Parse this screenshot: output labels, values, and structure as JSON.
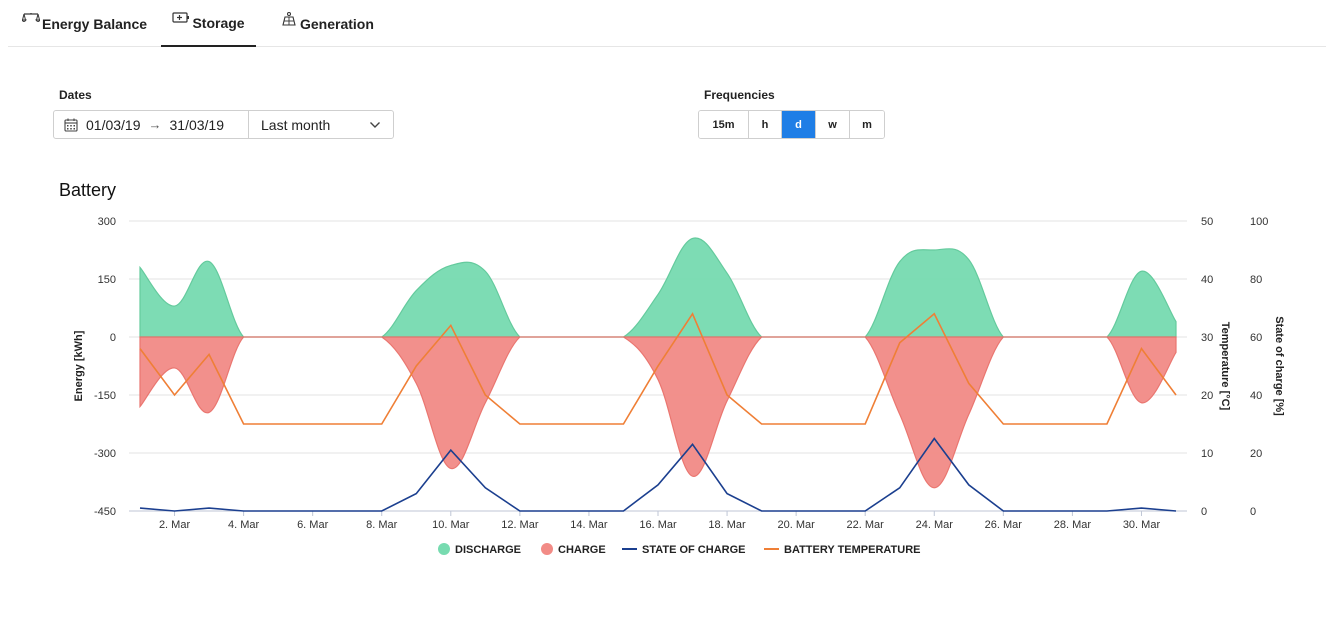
{
  "tabs": [
    {
      "label": "Energy Balance",
      "icon": "scale-icon"
    },
    {
      "label": "Storage",
      "icon": "battery-icon",
      "active": true
    },
    {
      "label": "Generation",
      "icon": "solar-panel-icon"
    }
  ],
  "filters": {
    "dates_label": "Dates",
    "start_date": "01/03/19",
    "end_date": "31/03/19",
    "range_preset": "Last month",
    "frequencies_label": "Frequencies",
    "frequencies": [
      "15m",
      "h",
      "d",
      "w",
      "m"
    ],
    "selected_frequency": "d"
  },
  "colors": {
    "discharge": "#77dbb0",
    "charge": "#f28b86",
    "state_of_charge": "#1b3f8f",
    "battery_temperature": "#ef7f36",
    "accent": "#1f7ee6"
  },
  "chart_data": {
    "type": "area",
    "title": "Battery",
    "x": [
      "1. Mar",
      "2. Mar",
      "3. Mar",
      "4. Mar",
      "5. Mar",
      "6. Mar",
      "7. Mar",
      "8. Mar",
      "9. Mar",
      "10. Mar",
      "11. Mar",
      "12. Mar",
      "13. Mar",
      "14. Mar",
      "15. Mar",
      "16. Mar",
      "17. Mar",
      "18. Mar",
      "19. Mar",
      "20. Mar",
      "21. Mar",
      "22. Mar",
      "23. Mar",
      "24. Mar",
      "25. Mar",
      "26. Mar",
      "27. Mar",
      "28. Mar",
      "29. Mar",
      "30. Mar",
      "31. Mar"
    ],
    "xticks": [
      "2. Mar",
      "4. Mar",
      "6. Mar",
      "8. Mar",
      "10. Mar",
      "12. Mar",
      "14. Mar",
      "16. Mar",
      "18. Mar",
      "20. Mar",
      "22. Mar",
      "24. Mar",
      "26. Mar",
      "28. Mar",
      "30. Mar"
    ],
    "yaxes": [
      {
        "label": "Energy [kWh]",
        "min": -450,
        "max": 300,
        "ticks": [
          300,
          150,
          0,
          -150,
          -300,
          -450
        ]
      },
      {
        "label": "Temperature [°C]",
        "min": 0,
        "max": 50,
        "ticks": [
          50,
          40,
          30,
          20,
          10,
          0
        ]
      },
      {
        "label": "State of charge [%]",
        "min": 0,
        "max": 100,
        "ticks": [
          100,
          80,
          60,
          40,
          20,
          0
        ]
      }
    ],
    "grid": true,
    "legend_position": "bottom",
    "series": [
      {
        "name": "DISCHARGE",
        "type": "area",
        "axis": 0,
        "values": [
          180,
          80,
          195,
          0,
          0,
          0,
          0,
          0,
          120,
          185,
          170,
          0,
          0,
          0,
          0,
          110,
          255,
          165,
          0,
          0,
          0,
          0,
          195,
          225,
          200,
          0,
          0,
          0,
          0,
          170,
          40
        ]
      },
      {
        "name": "CHARGE",
        "type": "area",
        "axis": 0,
        "values": [
          -180,
          -80,
          -195,
          0,
          0,
          0,
          0,
          0,
          -120,
          -340,
          -170,
          0,
          0,
          0,
          0,
          -110,
          -360,
          -165,
          0,
          0,
          0,
          0,
          -200,
          -390,
          -200,
          0,
          0,
          0,
          0,
          -170,
          -40
        ]
      },
      {
        "name": "STATE OF CHARGE",
        "type": "line",
        "axis": 2,
        "values": [
          1,
          0,
          1,
          0,
          0,
          0,
          0,
          0,
          6,
          21,
          8,
          0,
          0,
          0,
          0,
          9,
          23,
          6,
          0,
          0,
          0,
          0,
          8,
          25,
          9,
          0,
          0,
          0,
          0,
          1,
          0
        ]
      },
      {
        "name": "BATTERY TEMPERATURE",
        "type": "line",
        "axis": 1,
        "values": [
          28,
          20,
          27,
          15,
          15,
          15,
          15,
          15,
          25,
          32,
          20,
          15,
          15,
          15,
          15,
          25,
          34,
          20,
          15,
          15,
          15,
          15,
          29,
          34,
          22,
          15,
          15,
          15,
          15,
          28,
          20
        ]
      }
    ]
  }
}
